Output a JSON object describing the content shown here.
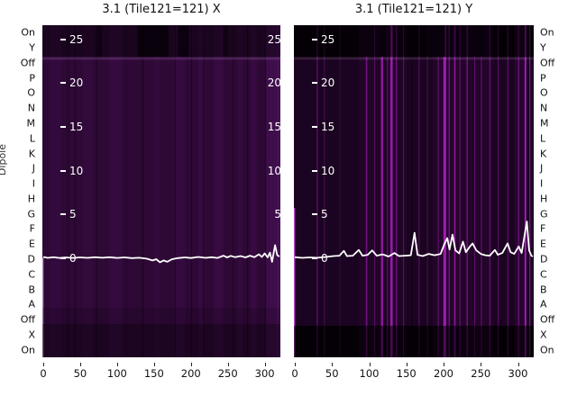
{
  "figure": {
    "ylabel": "Dipole",
    "row_labels": [
      "On",
      "Y",
      "Off",
      "P",
      "O",
      "N",
      "M",
      "L",
      "K",
      "J",
      "I",
      "H",
      "G",
      "F",
      "E",
      "D",
      "C",
      "B",
      "A",
      "Off",
      "X",
      "On"
    ]
  },
  "chart_data": [
    {
      "type": "heatmap",
      "title": "3.1 (Tile121=121) X",
      "x_ticks": [
        0,
        50,
        100,
        150,
        200,
        250,
        300
      ],
      "x_max": 320,
      "inner_y_ticks": [
        25,
        20,
        15,
        10,
        5,
        0
      ],
      "right_edge_ticks": [
        25,
        20,
        15,
        10,
        5
      ],
      "inner_ylim": [
        -11.3,
        26.6
      ],
      "row_axis": "Dipole",
      "colors": {
        "base": "#2e0936",
        "line": "#ffffff"
      },
      "under_bands": [],
      "bands": [
        {
          "y0": 0.0,
          "y1": 0.096,
          "c": "#000000",
          "a": 0.42
        },
        {
          "y0": 0.096,
          "y1": 0.104,
          "c": "#a06cb0",
          "a": 0.25
        },
        {
          "y0": 0.85,
          "y1": 0.9,
          "c": "#000000",
          "a": 0.15
        },
        {
          "y0": 0.9,
          "y1": 1.0,
          "c": "#000000",
          "a": 0.38
        }
      ],
      "streaks": [
        {
          "x": 0.0,
          "w": 0.005,
          "c": "#bb95c8",
          "a": 0.9,
          "y0": 0.7,
          "y1": 1.0
        },
        {
          "x": 0.03,
          "w": 0.05,
          "c": "#360c40",
          "a": 0.7
        },
        {
          "x": 0.1,
          "w": 0.015,
          "c": "#270731",
          "a": 0.8
        },
        {
          "x": 0.135,
          "w": 0.003,
          "c": "#1c0423"
        },
        {
          "x": 0.17,
          "w": 0.04,
          "c": "#360c40",
          "a": 0.6
        },
        {
          "x": 0.225,
          "w": 0.004,
          "c": "#1c0423"
        },
        {
          "x": 0.28,
          "w": 0.055,
          "c": "#370c42",
          "a": 0.8
        },
        {
          "x": 0.35,
          "w": 0.01,
          "c": "#2a0834",
          "a": 0.8
        },
        {
          "x": 0.42,
          "w": 0.004,
          "c": "#190320"
        },
        {
          "x": 0.47,
          "w": 0.025,
          "c": "#350b3f",
          "a": 0.6
        },
        {
          "x": 0.55,
          "w": 0.05,
          "c": "#380c43",
          "a": 0.7
        },
        {
          "x": 0.555,
          "w": 0.003,
          "c": "#1c0423"
        },
        {
          "x": 0.625,
          "w": 0.003,
          "c": "#1c0423"
        },
        {
          "x": 0.655,
          "w": 0.025,
          "c": "#3a0d45",
          "a": 0.7
        },
        {
          "x": 0.675,
          "w": 0.003,
          "c": "#1e0526"
        },
        {
          "x": 0.72,
          "w": 0.04,
          "c": "#3a0d45",
          "a": 0.8
        },
        {
          "x": 0.8,
          "w": 0.003,
          "c": "#1c0423"
        },
        {
          "x": 0.82,
          "w": 0.02,
          "c": "#380c43",
          "a": 0.7
        },
        {
          "x": 0.86,
          "w": 0.003,
          "c": "#1e0526"
        },
        {
          "x": 0.875,
          "w": 0.025,
          "c": "#3a0d45",
          "a": 0.8
        },
        {
          "x": 0.935,
          "w": 0.003,
          "c": "#200629"
        },
        {
          "x": 0.94,
          "w": 0.05,
          "c": "#40104c",
          "a": 0.9
        },
        {
          "x": 0.985,
          "w": 0.015,
          "c": "#48125a",
          "a": 0.9
        },
        {
          "x": 0.4,
          "w": 0.13,
          "c": "#0a010d",
          "y0": 0,
          "y1": 0.095,
          "a": 0.85
        },
        {
          "x": 0.57,
          "w": 0.045,
          "c": "#0a010d",
          "y0": 0,
          "y1": 0.095,
          "a": 0.7
        },
        {
          "x": 0.23,
          "w": 0.02,
          "c": "#0d0211",
          "y0": 0,
          "y1": 0.095,
          "a": 0.6
        },
        {
          "x": 0.76,
          "w": 0.02,
          "c": "#0d0211",
          "y0": 0,
          "y1": 0.095,
          "a": 0.5
        }
      ],
      "line_points": [
        [
          0,
          0.15
        ],
        [
          6,
          0.05
        ],
        [
          14,
          0.12
        ],
        [
          22,
          0.04
        ],
        [
          30,
          0.1
        ],
        [
          40,
          0.04
        ],
        [
          50,
          0.1
        ],
        [
          60,
          0.05
        ],
        [
          70,
          0.12
        ],
        [
          80,
          0.06
        ],
        [
          90,
          0.12
        ],
        [
          100,
          0.04
        ],
        [
          110,
          0.1
        ],
        [
          120,
          0.02
        ],
        [
          130,
          0.06
        ],
        [
          140,
          -0.04
        ],
        [
          148,
          -0.25
        ],
        [
          153,
          -0.1
        ],
        [
          158,
          -0.45
        ],
        [
          163,
          -0.25
        ],
        [
          168,
          -0.4
        ],
        [
          174,
          -0.12
        ],
        [
          182,
          0.02
        ],
        [
          192,
          0.1
        ],
        [
          200,
          0.03
        ],
        [
          210,
          0.15
        ],
        [
          220,
          0.05
        ],
        [
          228,
          0.12
        ],
        [
          236,
          0.04
        ],
        [
          244,
          0.3
        ],
        [
          249,
          0.1
        ],
        [
          254,
          0.28
        ],
        [
          260,
          0.12
        ],
        [
          267,
          0.25
        ],
        [
          274,
          0.1
        ],
        [
          280,
          0.3
        ],
        [
          286,
          0.12
        ],
        [
          292,
          0.45
        ],
        [
          296,
          0.15
        ],
        [
          300,
          0.55
        ],
        [
          304,
          0.1
        ],
        [
          307,
          0.65
        ],
        [
          310,
          -0.4
        ],
        [
          314,
          1.5
        ],
        [
          317,
          0.35
        ],
        [
          320,
          0.2
        ]
      ]
    },
    {
      "type": "heatmap",
      "title": "3.1 (Tile121=121) Y",
      "x_ticks": [
        0,
        50,
        100,
        150,
        200,
        250,
        300
      ],
      "x_max": 320,
      "inner_y_ticks": [
        25,
        20,
        15,
        10,
        5,
        0
      ],
      "right_edge_ticks": [],
      "inner_ylim": [
        -11.3,
        26.6
      ],
      "row_axis": "Dipole",
      "colors": {
        "base": "#0d020f",
        "line": "#ffffff"
      },
      "under_bands": [
        {
          "y0": 0.104,
          "y1": 0.905,
          "c": "#1f0526",
          "a": 0.8
        }
      ],
      "bands": [
        {
          "y0": 0.0,
          "y1": 0.096,
          "c": "#000000",
          "a": 0.55
        },
        {
          "y0": 0.096,
          "y1": 0.104,
          "c": "#c07ad0",
          "a": 0.22
        },
        {
          "y0": 0.905,
          "y1": 1.0,
          "c": "#000000",
          "a": 0.55
        }
      ],
      "streaks": [
        {
          "x": 0.0,
          "w": 0.005,
          "c": "#c94fdb",
          "a": 0.9,
          "y0": 0.55,
          "y1": 1.0
        },
        {
          "x": 0.095,
          "w": 0.005,
          "c": "#5a1066"
        },
        {
          "x": 0.125,
          "w": 0.003,
          "c": "#490d54"
        },
        {
          "x": 0.19,
          "w": 0.002,
          "c": "#38093f"
        },
        {
          "x": 0.27,
          "w": 0.2,
          "c": "#220529",
          "a": 0.7
        },
        {
          "x": 0.3,
          "w": 0.006,
          "c": "#73127f"
        },
        {
          "x": 0.335,
          "w": 0.004,
          "c": "#5c0f69"
        },
        {
          "x": 0.363,
          "w": 0.009,
          "c": "#8f17a0"
        },
        {
          "x": 0.388,
          "w": 0.004,
          "c": "#6a1178"
        },
        {
          "x": 0.402,
          "w": 0.01,
          "c": "#9a18ac"
        },
        {
          "x": 0.425,
          "w": 0.005,
          "c": "#73127f"
        },
        {
          "x": 0.455,
          "w": 0.004,
          "c": "#5c0f69"
        },
        {
          "x": 0.49,
          "w": 0.002,
          "c": "#000000",
          "a": 0.6
        },
        {
          "x": 0.52,
          "w": 0.004,
          "c": "#5a0f66"
        },
        {
          "x": 0.555,
          "w": 0.003,
          "c": "#490d54"
        },
        {
          "x": 0.58,
          "w": 0.25,
          "c": "#26062e",
          "a": 0.7
        },
        {
          "x": 0.6,
          "w": 0.004,
          "c": "#6a1178"
        },
        {
          "x": 0.623,
          "w": 0.012,
          "c": "#a01bb2"
        },
        {
          "x": 0.645,
          "w": 0.005,
          "c": "#7a1389"
        },
        {
          "x": 0.668,
          "w": 0.006,
          "c": "#8f17a0"
        },
        {
          "x": 0.69,
          "w": 0.004,
          "c": "#6a1178"
        },
        {
          "x": 0.72,
          "w": 0.005,
          "c": "#7a1389"
        },
        {
          "x": 0.752,
          "w": 0.004,
          "c": "#5c0f69"
        },
        {
          "x": 0.78,
          "w": 0.003,
          "c": "#6a1178"
        },
        {
          "x": 0.815,
          "w": 0.004,
          "c": "#73127f"
        },
        {
          "x": 0.85,
          "w": 0.003,
          "c": "#5c0f69"
        },
        {
          "x": 0.89,
          "w": 0.003,
          "c": "#6a1178"
        },
        {
          "x": 0.92,
          "w": 0.05,
          "c": "#2c0735",
          "a": 0.7
        },
        {
          "x": 0.935,
          "w": 0.004,
          "c": "#7a1389"
        },
        {
          "x": 0.962,
          "w": 0.007,
          "c": "#a81bc0"
        },
        {
          "x": 0.982,
          "w": 0.004,
          "c": "#8f17a0"
        },
        {
          "x": 0.3,
          "w": 0.01,
          "c": "#1c0422",
          "y0": 0,
          "y1": 0.095
        },
        {
          "x": 0.36,
          "w": 0.03,
          "c": "#190320",
          "y0": 0,
          "y1": 0.095
        },
        {
          "x": 0.55,
          "w": 0.08,
          "c": "#15031b",
          "y0": 0,
          "y1": 0.095
        },
        {
          "x": 0.75,
          "w": 0.04,
          "c": "#15031b",
          "y0": 0,
          "y1": 0.095
        }
      ],
      "line_points": [
        [
          0,
          0.12
        ],
        [
          10,
          0.05
        ],
        [
          20,
          0.1
        ],
        [
          30,
          0.06
        ],
        [
          42,
          0.15
        ],
        [
          52,
          0.25
        ],
        [
          60,
          0.3
        ],
        [
          66,
          0.85
        ],
        [
          70,
          0.25
        ],
        [
          78,
          0.3
        ],
        [
          86,
          0.95
        ],
        [
          91,
          0.3
        ],
        [
          98,
          0.4
        ],
        [
          104,
          0.9
        ],
        [
          110,
          0.3
        ],
        [
          118,
          0.45
        ],
        [
          126,
          0.2
        ],
        [
          134,
          0.6
        ],
        [
          140,
          0.25
        ],
        [
          148,
          0.3
        ],
        [
          156,
          0.35
        ],
        [
          161,
          2.9
        ],
        [
          165,
          0.4
        ],
        [
          172,
          0.25
        ],
        [
          180,
          0.5
        ],
        [
          188,
          0.35
        ],
        [
          196,
          0.5
        ],
        [
          201,
          1.6
        ],
        [
          205,
          2.3
        ],
        [
          208,
          1.0
        ],
        [
          212,
          2.7
        ],
        [
          216,
          0.9
        ],
        [
          221,
          0.55
        ],
        [
          226,
          1.9
        ],
        [
          230,
          0.7
        ],
        [
          235,
          1.3
        ],
        [
          239,
          1.7
        ],
        [
          244,
          0.9
        ],
        [
          250,
          0.5
        ],
        [
          256,
          0.35
        ],
        [
          262,
          0.3
        ],
        [
          269,
          0.95
        ],
        [
          273,
          0.4
        ],
        [
          279,
          0.6
        ],
        [
          286,
          1.7
        ],
        [
          290,
          0.7
        ],
        [
          295,
          0.5
        ],
        [
          301,
          1.35
        ],
        [
          305,
          0.6
        ],
        [
          312,
          4.2
        ],
        [
          315,
          0.9
        ],
        [
          318,
          0.3
        ],
        [
          320,
          0.2
        ]
      ]
    }
  ]
}
